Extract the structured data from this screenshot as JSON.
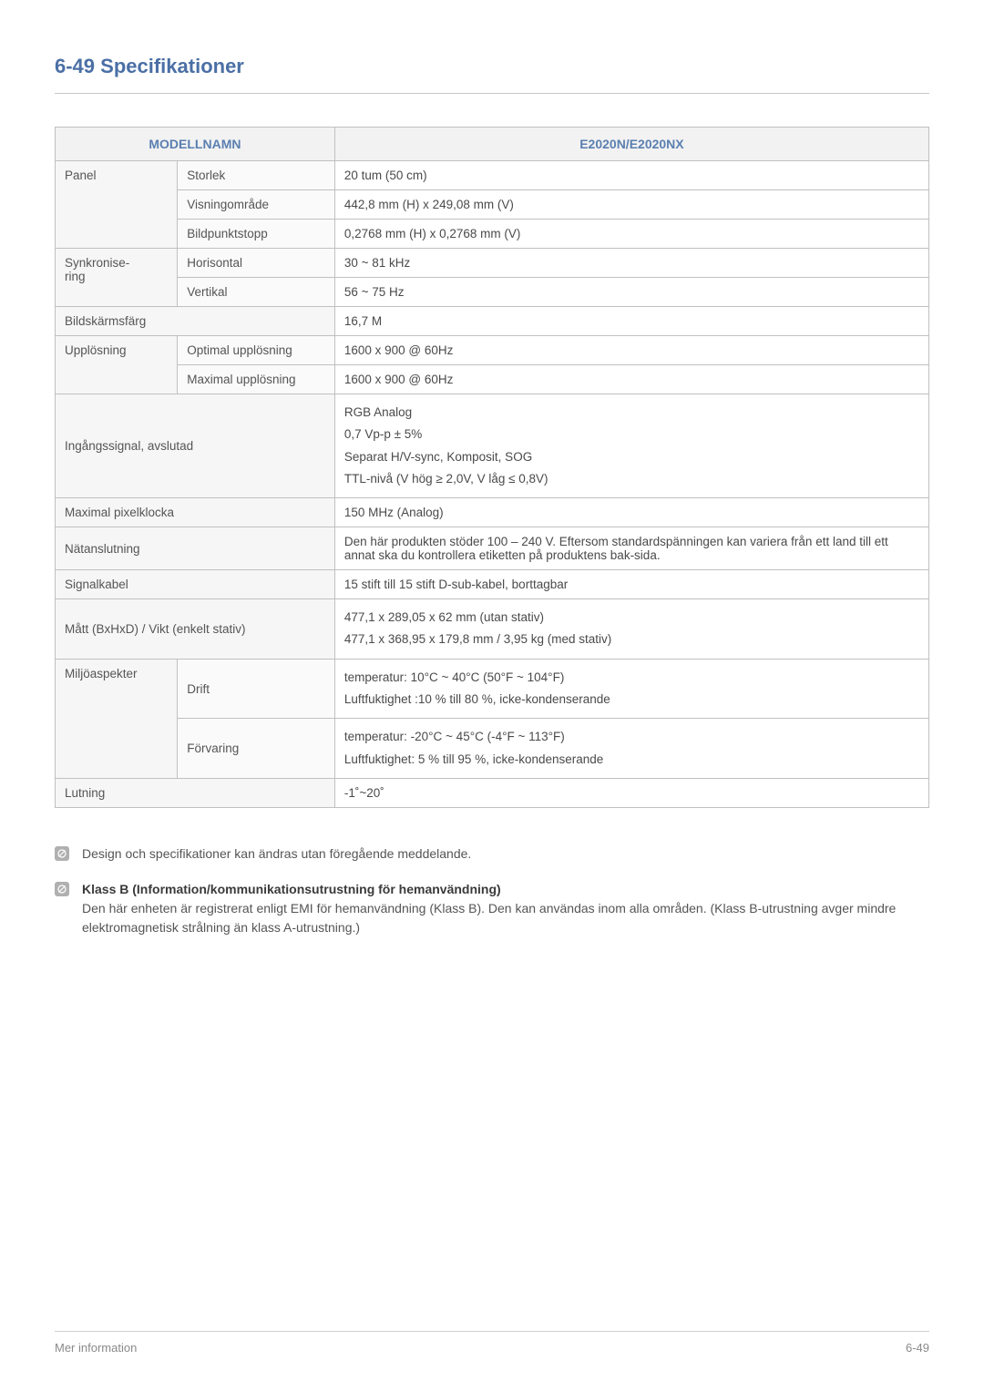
{
  "title": "6-49  Specifikationer",
  "table": {
    "header": {
      "left": "MODELLNAMN",
      "right": "E2020N/E2020NX"
    },
    "rows": [
      {
        "group": "Panel",
        "sub": "Storlek",
        "val": "20 tum (50 cm)",
        "group_rowspan": 3
      },
      {
        "sub": "Visningområde",
        "val": "442,8 mm (H) x 249,08 mm (V)"
      },
      {
        "sub": "Bildpunktstopp",
        "val": "0,2768 mm (H) x 0,2768 mm (V)"
      },
      {
        "group": "Synkronise-\nring",
        "sub": "Horisontal",
        "val": "30 ~ 81 kHz",
        "group_rowspan": 2
      },
      {
        "sub": "Vertikal",
        "val": "56 ~ 75 Hz"
      },
      {
        "merge": "Bildskärmsfärg",
        "val": "16,7 M"
      },
      {
        "group": "Upplösning",
        "sub": "Optimal upplösning",
        "val": "1600 x 900 @ 60Hz",
        "group_rowspan": 2
      },
      {
        "sub": "Maximal upplösning",
        "val": "1600 x 900 @ 60Hz"
      },
      {
        "merge": "Ingångssignal, avslutad",
        "val_lines": [
          "RGB Analog",
          "0,7 Vp-p ± 5%",
          "Separat H/V-sync, Komposit, SOG",
          "TTL-nivå (V hög ≥ 2,0V, V låg ≤ 0,8V)"
        ]
      },
      {
        "merge": "Maximal pixelklocka",
        "val": "150 MHz (Analog)"
      },
      {
        "merge": "Nätanslutning",
        "val": "Den här produkten stöder 100 – 240 V. Eftersom standardspänningen kan variera från ett land till ett annat ska du kontrollera etiketten på produktens bak-sida."
      },
      {
        "merge": "Signalkabel",
        "val": "15 stift till 15 stift D-sub-kabel, borttagbar"
      },
      {
        "merge": "Mått (BxHxD) / Vikt (enkelt stativ)",
        "val_lines": [
          "477,1 x 289,05 x 62 mm (utan stativ)",
          "477,1 x 368,95 x 179,8 mm / 3,95 kg (med stativ)"
        ]
      },
      {
        "group": "Miljöaspekter",
        "sub": "Drift",
        "val_lines": [
          "temperatur: 10°C ~ 40°C (50°F ~ 104°F)",
          "Luftfuktighet :10 % till 80 %, icke-kondenserande"
        ],
        "group_rowspan": 2
      },
      {
        "sub": "Förvaring",
        "val_lines": [
          "temperatur: -20°C ~ 45°C (-4°F ~ 113°F)",
          "Luftfuktighet: 5 % till 95 %, icke-kondenserande"
        ]
      },
      {
        "merge": "Lutning",
        "val": "-1˚~20˚"
      }
    ]
  },
  "notes": [
    {
      "bold": false,
      "text": "Design och specifikationer kan ändras utan föregående meddelande."
    },
    {
      "bold": true,
      "title": "Klass B (Information/kommunikationsutrustning för hemanvändning)",
      "text": "Den här enheten är registrerat enligt EMI för hemanvändning (Klass B). Den kan användas inom alla områden. (Klass B-utrustning avger mindre elektromagnetisk strålning än klass A-utrustning.)"
    }
  ],
  "footer": {
    "left": "Mer information",
    "right": "6-49"
  }
}
